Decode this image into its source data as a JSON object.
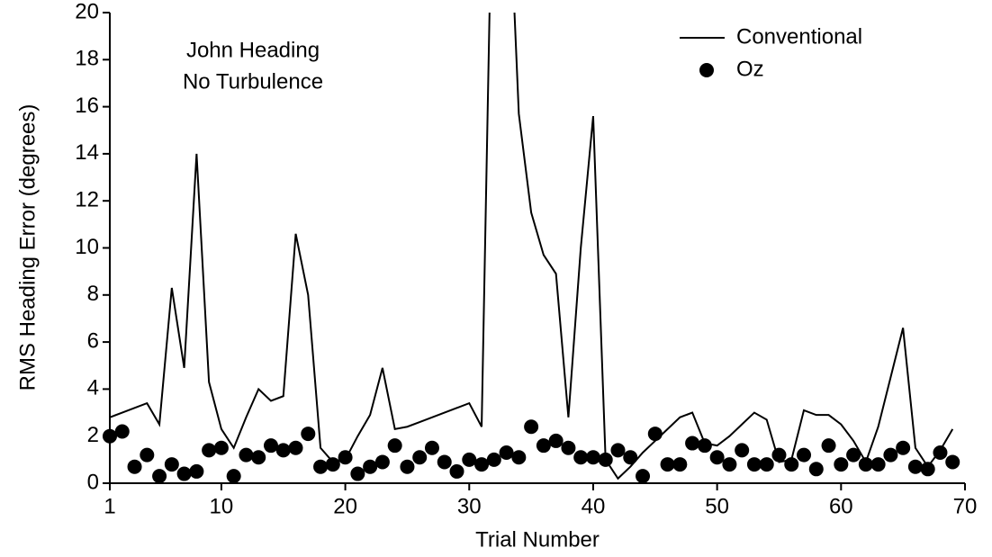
{
  "chart_data": {
    "type": "line-scatter",
    "annotations": [
      "John Heading",
      "No Turbulence"
    ],
    "xlabel": "Trial Number",
    "ylabel": "RMS Heading Error  (degrees)",
    "x": [
      1,
      2,
      3,
      4,
      5,
      6,
      7,
      8,
      9,
      10,
      11,
      12,
      13,
      14,
      15,
      16,
      17,
      18,
      19,
      20,
      21,
      22,
      23,
      24,
      25,
      26,
      27,
      28,
      29,
      30,
      31,
      32,
      33,
      34,
      35,
      36,
      37,
      38,
      39,
      40,
      41,
      42,
      43,
      44,
      45,
      46,
      47,
      48,
      49,
      50,
      51,
      52,
      53,
      54,
      55,
      56,
      57,
      58,
      59,
      60,
      61,
      62,
      63,
      64,
      65,
      66,
      67,
      68,
      69
    ],
    "series": [
      {
        "name": "Conventional",
        "kind": "line",
        "color": "#000000",
        "values": [
          2.8,
          3.0,
          3.2,
          3.4,
          2.5,
          8.3,
          4.9,
          14.0,
          4.3,
          2.3,
          1.5,
          2.8,
          4.0,
          3.5,
          3.7,
          10.6,
          8.0,
          1.5,
          0.9,
          1.0,
          2.0,
          2.9,
          4.9,
          2.3,
          2.4,
          2.6,
          2.8,
          3.0,
          3.2,
          3.4,
          2.4,
          30,
          28,
          15.7,
          11.5,
          9.7,
          8.9,
          2.8,
          10.0,
          15.6,
          1.0,
          0.2,
          0.7,
          1.3,
          1.8,
          2.3,
          2.8,
          3.0,
          1.7,
          1.6,
          2.0,
          2.5,
          3.0,
          2.7,
          0.9,
          1.0,
          3.1,
          2.9,
          2.9,
          2.5,
          1.8,
          0.9,
          2.4,
          4.5,
          6.6,
          1.5,
          0.7,
          1.4,
          2.3
        ]
      },
      {
        "name": "Oz",
        "kind": "scatter",
        "color": "#000000",
        "values": [
          2.0,
          2.2,
          0.7,
          1.2,
          0.3,
          0.8,
          0.4,
          0.5,
          1.4,
          1.5,
          0.3,
          1.2,
          1.1,
          1.6,
          1.4,
          1.5,
          2.1,
          0.7,
          0.8,
          1.1,
          0.4,
          0.7,
          0.9,
          1.6,
          0.7,
          1.1,
          1.5,
          0.9,
          0.5,
          1.0,
          0.8,
          1.0,
          1.3,
          1.1,
          2.4,
          1.6,
          1.8,
          1.5,
          1.1,
          1.1,
          1.0,
          1.4,
          1.1,
          0.3,
          2.1,
          0.8,
          0.8,
          1.7,
          1.6,
          1.1,
          0.8,
          1.4,
          0.8,
          0.8,
          1.2,
          0.8,
          1.2,
          0.6,
          1.6,
          0.8,
          1.2,
          0.8,
          0.8,
          1.2,
          1.5,
          0.7,
          0.6,
          1.3,
          0.9
        ]
      }
    ],
    "xlim": [
      1,
      70
    ],
    "ylim": [
      0,
      20
    ],
    "xticks": [
      1,
      10,
      20,
      30,
      40,
      50,
      60,
      70
    ],
    "yticks": [
      0,
      2,
      4,
      6,
      8,
      10,
      12,
      14,
      16,
      18,
      20
    ],
    "legend": "upper-right"
  }
}
